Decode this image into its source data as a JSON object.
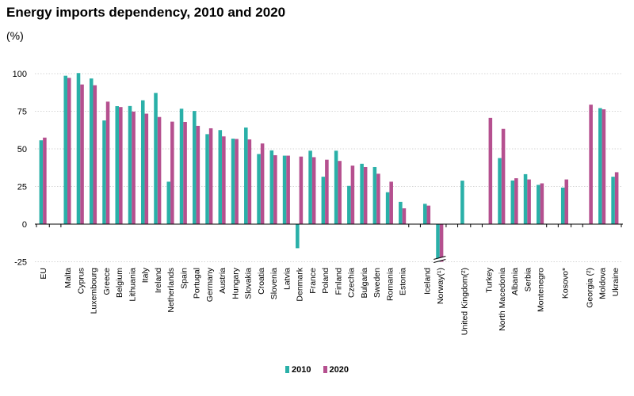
{
  "title": "Energy imports dependency, 2010 and 2020",
  "unit_label": "(%)",
  "colors": {
    "2010": "#2ab0a8",
    "2020": "#b5508f",
    "axis": "#000000",
    "grid": "#d6d6d6"
  },
  "chart_data": {
    "type": "bar",
    "title": "Energy imports dependency, 2010 and 2020",
    "ylabel": "(%)",
    "ylim": [
      -25,
      100
    ],
    "yticks": [
      -25,
      0,
      25,
      50,
      75,
      100
    ],
    "grid": "horizontal",
    "legend": "bottom-center",
    "categories": [
      "EU",
      "Malta",
      "Cyprus",
      "Luxembourg",
      "Greece",
      "Belgium",
      "Lithuania",
      "Italy",
      "Ireland",
      "Netherlands",
      "Spain",
      "Portugal",
      "Germany",
      "Austria",
      "Hungary",
      "Slovakia",
      "Croatia",
      "Slovenia",
      "Latvia",
      "Denmark",
      "France",
      "Poland",
      "Finland",
      "Czechia",
      "Bulgaria",
      "Sweden",
      "Romania",
      "Estonia",
      "Iceland",
      "Norway(¹)",
      "United Kingdom(²)",
      "Turkey",
      "North Macedonia",
      "Albania",
      "Serbia",
      "Montenegro",
      "Kosovo*",
      "Georgia (²)",
      "Moldova",
      "Ukraine"
    ],
    "groups": [
      [
        0
      ],
      [
        1,
        2,
        3,
        4,
        5,
        6,
        7,
        8,
        9,
        10,
        11,
        12,
        13,
        14,
        15,
        16,
        17,
        18,
        19,
        20,
        21,
        22,
        23,
        24,
        25,
        26,
        27
      ],
      [
        28,
        29
      ],
      [
        30
      ],
      [
        31,
        32,
        33,
        34,
        35
      ],
      [
        36
      ],
      [
        37,
        38,
        39
      ]
    ],
    "series": [
      {
        "name": "2010",
        "values": [
          55.7,
          98.6,
          100.4,
          96.8,
          68.9,
          78.4,
          78.5,
          82.3,
          87.2,
          28.2,
          76.7,
          75.2,
          59.8,
          62.5,
          56.8,
          64.2,
          46.6,
          49.0,
          45.5,
          -16.0,
          48.8,
          31.5,
          48.8,
          25.4,
          40.1,
          37.9,
          21.2,
          14.8,
          13.5,
          -26.0,
          28.9,
          null,
          43.9,
          29.0,
          33.2,
          26.1,
          24.3,
          null,
          77.1,
          31.5
        ]
      },
      {
        "name": "2020",
        "values": [
          57.5,
          97.2,
          92.8,
          92.3,
          81.4,
          77.8,
          74.8,
          73.4,
          71.2,
          68.1,
          67.9,
          65.3,
          63.7,
          58.3,
          56.6,
          56.3,
          53.6,
          45.8,
          45.5,
          44.9,
          44.5,
          42.8,
          42.0,
          38.9,
          37.9,
          33.5,
          28.2,
          10.5,
          12.3,
          -26.0,
          null,
          70.6,
          63.3,
          30.5,
          29.7,
          27.1,
          29.7,
          79.4,
          76.3,
          34.5
        ]
      }
    ]
  }
}
